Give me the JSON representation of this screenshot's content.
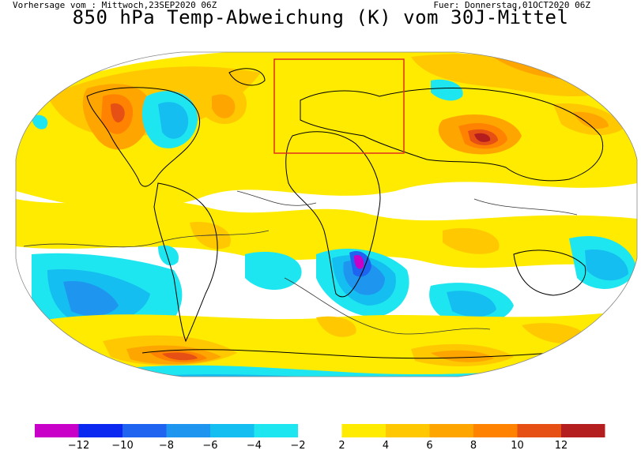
{
  "header": {
    "forecast_from": "Vorhersage vom : Mittwoch,23SEP2020 06Z",
    "valid_for": "Fuer: Donnerstag,01OCT2020 06Z",
    "title": "850 hPa Temp-Abweichung (K) vom 30J-Mittel"
  },
  "legend": {
    "bins": [
      {
        "color": "#c800c8"
      },
      {
        "color": "#0a28f0"
      },
      {
        "color": "#1e64f0"
      },
      {
        "color": "#1e96f0"
      },
      {
        "color": "#14bef0"
      },
      {
        "color": "#1ee6f0"
      },
      {
        "color": "#ffffff"
      },
      {
        "color": "#ffeb00"
      },
      {
        "color": "#ffc800"
      },
      {
        "color": "#ffa500"
      },
      {
        "color": "#ff8200"
      },
      {
        "color": "#e65014"
      },
      {
        "color": "#b41e1e"
      }
    ],
    "ticks": [
      "−12",
      "−10",
      "−8",
      "−6",
      "−4",
      "−2",
      "2",
      "4",
      "6",
      "8",
      "10",
      "12"
    ]
  },
  "map": {
    "colors": {
      "ocean_neutral": "#ffffff",
      "warm_weak": "#ffeb00",
      "warm_mid": "#ffc800",
      "warm_strong": "#ffa500",
      "warm_hot": "#ff8200",
      "warm_very_hot": "#e65014",
      "warm_extreme": "#b41e1e",
      "cold_weak": "#1ee6f0",
      "cold_mid": "#14bef0",
      "cold_strong": "#1e96f0",
      "cold_very": "#1e64f0",
      "cold_extreme": "#c800c8",
      "europe_box": "#e03020"
    }
  }
}
